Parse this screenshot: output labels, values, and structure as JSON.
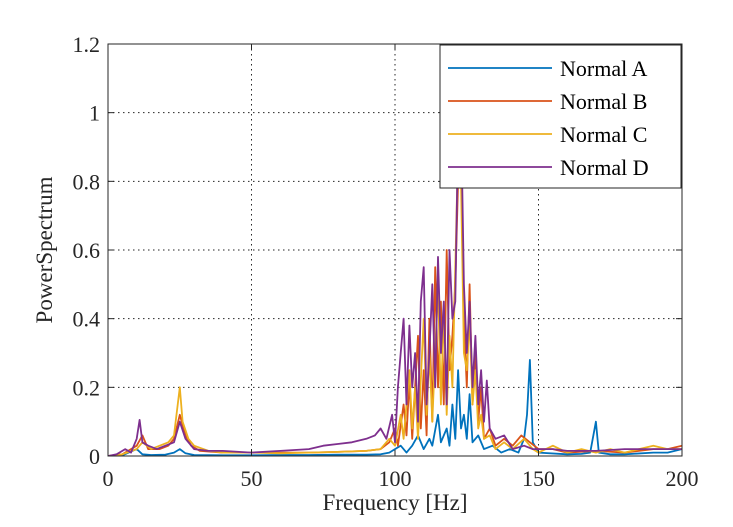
{
  "chart_data": {
    "type": "line",
    "title": "",
    "xlabel": "Frequency [Hz]",
    "ylabel": "PowerSpectrum",
    "xlim": [
      0,
      200
    ],
    "ylim": [
      0,
      1.2
    ],
    "xticks": [
      "0",
      "50",
      "100",
      "150",
      "200"
    ],
    "yticks": [
      "0",
      "0.2",
      "0.4",
      "0.6",
      "0.8",
      "1",
      "1.2"
    ],
    "grid": "dotted",
    "legend_position": "top-right",
    "series": [
      {
        "name": "Normal A",
        "color": "#0072BD",
        "points": [
          [
            0,
            0
          ],
          [
            5,
            0.002
          ],
          [
            10,
            0.02
          ],
          [
            12,
            0.005
          ],
          [
            15,
            0.003
          ],
          [
            20,
            0.004
          ],
          [
            23,
            0.01
          ],
          [
            25,
            0.02
          ],
          [
            27,
            0.008
          ],
          [
            30,
            0.003
          ],
          [
            40,
            0.002
          ],
          [
            50,
            0.002
          ],
          [
            60,
            0.003
          ],
          [
            70,
            0.003
          ],
          [
            80,
            0.004
          ],
          [
            90,
            0.004
          ],
          [
            95,
            0.005
          ],
          [
            98,
            0.01
          ],
          [
            100,
            0.02
          ],
          [
            102,
            0.03
          ],
          [
            104,
            0.01
          ],
          [
            106,
            0.03
          ],
          [
            108,
            0.06
          ],
          [
            110,
            0.02
          ],
          [
            112,
            0.05
          ],
          [
            113,
            0.03
          ],
          [
            115,
            0.12
          ],
          [
            116,
            0.04
          ],
          [
            118,
            0.08
          ],
          [
            119,
            0.03
          ],
          [
            120,
            0.15
          ],
          [
            121,
            0.05
          ],
          [
            122,
            0.25
          ],
          [
            123,
            0.08
          ],
          [
            124,
            0.12
          ],
          [
            125,
            0.05
          ],
          [
            126,
            0.18
          ],
          [
            127,
            0.04
          ],
          [
            129,
            0.06
          ],
          [
            131,
            0.02
          ],
          [
            134,
            0.03
          ],
          [
            137,
            0.01
          ],
          [
            140,
            0.02
          ],
          [
            143,
            0.01
          ],
          [
            145,
            0.05
          ],
          [
            146,
            0.12
          ],
          [
            147,
            0.28
          ],
          [
            148,
            0.04
          ],
          [
            150,
            0.01
          ],
          [
            160,
            0.005
          ],
          [
            165,
            0.006
          ],
          [
            168,
            0.01
          ],
          [
            170,
            0.1
          ],
          [
            171,
            0.01
          ],
          [
            175,
            0.005
          ],
          [
            180,
            0.005
          ],
          [
            190,
            0.01
          ],
          [
            195,
            0.01
          ],
          [
            200,
            0.02
          ]
        ]
      },
      {
        "name": "Normal B",
        "color": "#D95319",
        "points": [
          [
            0,
            0
          ],
          [
            5,
            0.005
          ],
          [
            10,
            0.03
          ],
          [
            12,
            0.06
          ],
          [
            14,
            0.02
          ],
          [
            18,
            0.02
          ],
          [
            21,
            0.03
          ],
          [
            23,
            0.05
          ],
          [
            25,
            0.12
          ],
          [
            27,
            0.06
          ],
          [
            29,
            0.03
          ],
          [
            32,
            0.015
          ],
          [
            40,
            0.01
          ],
          [
            50,
            0.01
          ],
          [
            60,
            0.01
          ],
          [
            70,
            0.01
          ],
          [
            80,
            0.012
          ],
          [
            90,
            0.015
          ],
          [
            95,
            0.02
          ],
          [
            98,
            0.04
          ],
          [
            100,
            0.08
          ],
          [
            101,
            0.03
          ],
          [
            103,
            0.15
          ],
          [
            104,
            0.06
          ],
          [
            105,
            0.22
          ],
          [
            106,
            0.05
          ],
          [
            108,
            0.35
          ],
          [
            109,
            0.08
          ],
          [
            110,
            0.25
          ],
          [
            111,
            0.06
          ],
          [
            112,
            0.4
          ],
          [
            113,
            0.1
          ],
          [
            114,
            0.55
          ],
          [
            115,
            0.2
          ],
          [
            116,
            0.45
          ],
          [
            117,
            0.15
          ],
          [
            118,
            0.6
          ],
          [
            119,
            0.25
          ],
          [
            120,
            0.35
          ],
          [
            121,
            0.5
          ],
          [
            122,
            0.8
          ],
          [
            123,
            0.95
          ],
          [
            124,
            0.4
          ],
          [
            125,
            0.2
          ],
          [
            126,
            0.5
          ],
          [
            127,
            0.15
          ],
          [
            128,
            0.3
          ],
          [
            129,
            0.1
          ],
          [
            130,
            0.2
          ],
          [
            131,
            0.05
          ],
          [
            133,
            0.08
          ],
          [
            135,
            0.03
          ],
          [
            138,
            0.05
          ],
          [
            141,
            0.03
          ],
          [
            144,
            0.06
          ],
          [
            147,
            0.04
          ],
          [
            150,
            0.02
          ],
          [
            155,
            0.02
          ],
          [
            160,
            0.01
          ],
          [
            170,
            0.015
          ],
          [
            180,
            0.01
          ],
          [
            190,
            0.02
          ],
          [
            195,
            0.02
          ],
          [
            200,
            0.03
          ]
        ]
      },
      {
        "name": "Normal C",
        "color": "#EDB120",
        "points": [
          [
            0,
            0
          ],
          [
            5,
            0.005
          ],
          [
            10,
            0.02
          ],
          [
            12,
            0.04
          ],
          [
            15,
            0.02
          ],
          [
            18,
            0.03
          ],
          [
            21,
            0.04
          ],
          [
            23,
            0.06
          ],
          [
            25,
            0.2
          ],
          [
            26,
            0.1
          ],
          [
            28,
            0.05
          ],
          [
            30,
            0.03
          ],
          [
            35,
            0.015
          ],
          [
            40,
            0.01
          ],
          [
            50,
            0.01
          ],
          [
            60,
            0.008
          ],
          [
            70,
            0.01
          ],
          [
            80,
            0.012
          ],
          [
            90,
            0.015
          ],
          [
            95,
            0.02
          ],
          [
            98,
            0.05
          ],
          [
            100,
            0.03
          ],
          [
            102,
            0.12
          ],
          [
            103,
            0.05
          ],
          [
            105,
            0.25
          ],
          [
            106,
            0.08
          ],
          [
            107,
            0.2
          ],
          [
            108,
            0.05
          ],
          [
            110,
            0.4
          ],
          [
            111,
            0.12
          ],
          [
            112,
            0.3
          ],
          [
            113,
            0.1
          ],
          [
            115,
            0.5
          ],
          [
            116,
            0.15
          ],
          [
            117,
            0.42
          ],
          [
            118,
            0.12
          ],
          [
            119,
            0.35
          ],
          [
            120,
            0.2
          ],
          [
            121,
            0.55
          ],
          [
            122,
            0.9
          ],
          [
            123,
            0.8
          ],
          [
            124,
            0.3
          ],
          [
            125,
            0.25
          ],
          [
            126,
            0.4
          ],
          [
            127,
            0.15
          ],
          [
            128,
            0.25
          ],
          [
            129,
            0.08
          ],
          [
            130,
            0.12
          ],
          [
            131,
            0.05
          ],
          [
            133,
            0.06
          ],
          [
            135,
            0.02
          ],
          [
            138,
            0.04
          ],
          [
            141,
            0.02
          ],
          [
            145,
            0.05
          ],
          [
            148,
            0.02
          ],
          [
            150,
            0.01
          ],
          [
            155,
            0.03
          ],
          [
            160,
            0.01
          ],
          [
            165,
            0.02
          ],
          [
            170,
            0.01
          ],
          [
            175,
            0.02
          ],
          [
            180,
            0.01
          ],
          [
            190,
            0.03
          ],
          [
            195,
            0.02
          ],
          [
            200,
            0.02
          ]
        ]
      },
      {
        "name": "Normal D",
        "color": "#7E2F8E",
        "points": [
          [
            0,
            0
          ],
          [
            3,
            0.005
          ],
          [
            6,
            0.02
          ],
          [
            8,
            0.01
          ],
          [
            10,
            0.05
          ],
          [
            11,
            0.105
          ],
          [
            12,
            0.04
          ],
          [
            14,
            0.03
          ],
          [
            17,
            0.02
          ],
          [
            20,
            0.03
          ],
          [
            23,
            0.04
          ],
          [
            25,
            0.1
          ],
          [
            27,
            0.05
          ],
          [
            30,
            0.02
          ],
          [
            35,
            0.015
          ],
          [
            40,
            0.015
          ],
          [
            50,
            0.01
          ],
          [
            60,
            0.015
          ],
          [
            70,
            0.02
          ],
          [
            75,
            0.03
          ],
          [
            80,
            0.035
          ],
          [
            85,
            0.04
          ],
          [
            90,
            0.05
          ],
          [
            93,
            0.06
          ],
          [
            95,
            0.08
          ],
          [
            97,
            0.05
          ],
          [
            99,
            0.12
          ],
          [
            100,
            0.04
          ],
          [
            101,
            0.2
          ],
          [
            102,
            0.3
          ],
          [
            103,
            0.4
          ],
          [
            104,
            0.15
          ],
          [
            105,
            0.38
          ],
          [
            106,
            0.2
          ],
          [
            107,
            0.3
          ],
          [
            108,
            0.1
          ],
          [
            109,
            0.45
          ],
          [
            110,
            0.55
          ],
          [
            111,
            0.15
          ],
          [
            112,
            0.3
          ],
          [
            113,
            0.5
          ],
          [
            114,
            0.2
          ],
          [
            115,
            0.58
          ],
          [
            116,
            0.3
          ],
          [
            117,
            0.45
          ],
          [
            118,
            0.15
          ],
          [
            119,
            0.6
          ],
          [
            120,
            0.4
          ],
          [
            121,
            0.45
          ],
          [
            122,
            0.95
          ],
          [
            123,
            1.0
          ],
          [
            124,
            0.5
          ],
          [
            125,
            0.3
          ],
          [
            126,
            0.45
          ],
          [
            127,
            0.2
          ],
          [
            128,
            0.35
          ],
          [
            129,
            0.15
          ],
          [
            130,
            0.25
          ],
          [
            131,
            0.1
          ],
          [
            132,
            0.22
          ],
          [
            133,
            0.08
          ],
          [
            135,
            0.05
          ],
          [
            138,
            0.06
          ],
          [
            141,
            0.02
          ],
          [
            145,
            0.03
          ],
          [
            148,
            0.02
          ],
          [
            150,
            0.02
          ],
          [
            155,
            0.02
          ],
          [
            160,
            0.015
          ],
          [
            170,
            0.015
          ],
          [
            180,
            0.02
          ],
          [
            190,
            0.02
          ],
          [
            195,
            0.02
          ],
          [
            200,
            0.02
          ]
        ]
      }
    ]
  }
}
